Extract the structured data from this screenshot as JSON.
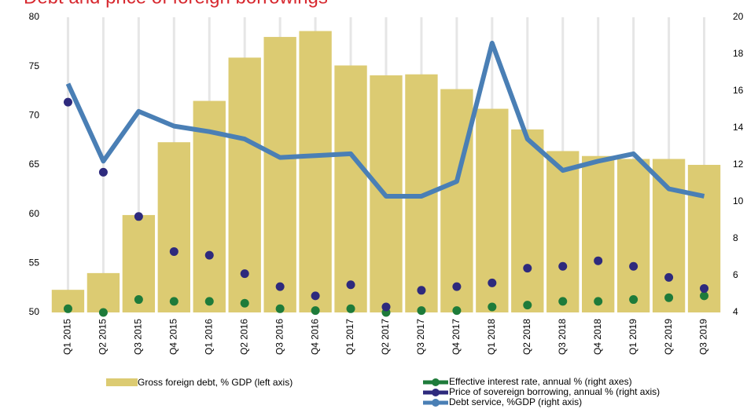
{
  "chart_data": {
    "type": "combo",
    "title": "Debt and price of foreign borrowings",
    "categories": [
      "Q1 2015",
      "Q2 2015",
      "Q3 2015",
      "Q4 2015",
      "Q1 2016",
      "Q2 2016",
      "Q3 2016",
      "Q4 2016",
      "Q1 2017",
      "Q2 2017",
      "Q3 2017",
      "Q4 2017",
      "Q1 2018",
      "Q2 2018",
      "Q3 2018",
      "Q4 2018",
      "Q1 2019",
      "Q2 2019",
      "Q3 2019"
    ],
    "ylim": [
      50,
      80
    ],
    "yticks": [
      50,
      55,
      60,
      65,
      70,
      75,
      80
    ],
    "y2lim": [
      4,
      20
    ],
    "y2ticks": [
      4,
      6,
      8,
      10,
      12,
      14,
      16,
      18,
      20
    ],
    "grid": true,
    "series": [
      {
        "name": "Gross foreign debt, % GDP (left axis)",
        "type": "bar",
        "axis": "y",
        "color": "#dccb72",
        "values": [
          52.3,
          54.0,
          59.9,
          67.3,
          71.5,
          75.9,
          78.0,
          78.6,
          75.1,
          74.1,
          74.2,
          72.7,
          70.7,
          68.6,
          66.4,
          65.9,
          65.6,
          65.6,
          65.0
        ]
      },
      {
        "name": "Effective interest rate, annual % (right axes)",
        "type": "scatter",
        "axis": "y2",
        "color": "#1e7b3a",
        "values": [
          4.2,
          4.0,
          4.7,
          4.6,
          4.6,
          4.5,
          4.2,
          4.1,
          4.2,
          4.0,
          4.1,
          4.1,
          4.3,
          4.4,
          4.6,
          4.6,
          4.7,
          4.8,
          4.9
        ]
      },
      {
        "name": "Price of sovereign borrowing, annual % (right axis)",
        "type": "scatter",
        "axis": "y2",
        "color": "#2e2a7d",
        "values": [
          15.4,
          11.6,
          9.2,
          7.3,
          7.1,
          6.1,
          5.4,
          4.9,
          5.5,
          4.3,
          5.2,
          5.4,
          5.6,
          6.4,
          6.5,
          6.8,
          6.5,
          5.9,
          5.3
        ]
      },
      {
        "name": "Debt service, %GDP (right axis)",
        "type": "line",
        "axis": "y2",
        "color": "#4a7fb5",
        "values": [
          16.4,
          12.2,
          14.9,
          14.1,
          13.8,
          13.4,
          12.4,
          12.5,
          12.6,
          10.3,
          10.3,
          11.1,
          18.6,
          13.4,
          11.7,
          12.2,
          12.6,
          10.7,
          10.3
        ]
      }
    ]
  }
}
